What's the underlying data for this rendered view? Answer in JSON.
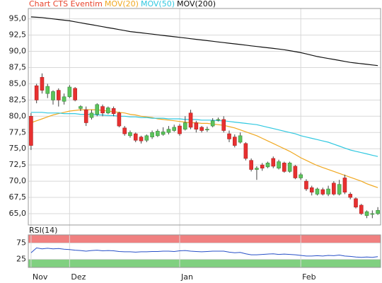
{
  "chart_data": {
    "type": "candlestick",
    "name": "Chart CTS Eventim",
    "name_color": "#e8442c",
    "up_color": "#5cc45c",
    "down_color": "#e83030",
    "categories": [
      "Nov",
      null,
      null,
      null,
      null,
      null,
      null,
      "Dez",
      null,
      null,
      null,
      null,
      null,
      null,
      null,
      null,
      null,
      null,
      null,
      null,
      null,
      null,
      null,
      null,
      null,
      null,
      null,
      "Jan",
      null,
      null,
      null,
      null,
      null,
      null,
      null,
      null,
      null,
      null,
      null,
      null,
      null,
      null,
      null,
      null,
      null,
      null,
      null,
      null,
      null,
      "Feb",
      null,
      null,
      null,
      null,
      null,
      null,
      null,
      null,
      null,
      null,
      null,
      null,
      null,
      null
    ],
    "open": [
      80,
      84.7,
      86,
      83.5,
      82.5,
      84,
      82.3,
      83,
      84.3,
      81.2,
      81,
      79.8,
      80.3,
      81.5,
      80.5,
      81.2,
      80.5,
      78.2,
      77,
      77.3,
      76.8,
      76.3,
      76.8,
      77,
      77.2,
      77.5,
      77.8,
      78.5,
      78,
      80.5,
      79,
      78.3,
      78,
      78.5,
      79.5,
      79.5,
      77.3,
      76.8,
      76,
      75.8,
      73.2,
      71.8,
      72.5,
      72.2,
      73.5,
      72,
      72.8,
      71.5,
      72.3,
      70.5,
      70,
      69,
      68,
      68.7,
      68,
      69.7,
      68,
      70.5,
      68,
      67.3,
      66.3,
      64.7,
      65,
      65
    ],
    "high": [
      80.5,
      85,
      86.6,
      85,
      84,
      84.3,
      83.5,
      84.8,
      84.5,
      81.7,
      81.5,
      81,
      82,
      81.8,
      81.5,
      81.5,
      80.7,
      78.5,
      77.8,
      77.5,
      77,
      77.2,
      77.8,
      78,
      78.3,
      78.5,
      78.7,
      78.8,
      80,
      81,
      79.3,
      78.5,
      78.4,
      79.7,
      79.8,
      80,
      77.8,
      77.2,
      77.5,
      76,
      73.5,
      72.3,
      72.8,
      73,
      73.8,
      73.3,
      73,
      73,
      72.5,
      71.3,
      70.3,
      69.3,
      69,
      69,
      69.3,
      70,
      70.2,
      71,
      68.3,
      67.5,
      66.5,
      65.5,
      65.5,
      66
    ],
    "low": [
      74.8,
      82,
      83.5,
      82.8,
      81.8,
      81.5,
      81.8,
      82.8,
      82.3,
      80.8,
      78.5,
      79.5,
      80,
      80,
      80.3,
      80,
      78.3,
      77,
      76.7,
      76,
      75.8,
      76,
      76.5,
      76.8,
      77,
      77.2,
      77.6,
      77,
      77.8,
      78,
      77.5,
      77.5,
      77.6,
      78.3,
      79.2,
      77.5,
      76,
      75.2,
      75.8,
      73.2,
      71.5,
      70.2,
      71.6,
      72,
      72,
      71.8,
      71.3,
      71.3,
      70.3,
      70.2,
      68.5,
      67.8,
      67.8,
      67.8,
      67.7,
      67.8,
      67.8,
      68,
      67.2,
      65.8,
      64.8,
      64.3,
      64.3,
      64.8
    ],
    "close": [
      75.5,
      82.5,
      84,
      84.6,
      83.8,
      82.5,
      83,
      84.5,
      82.5,
      81.5,
      79,
      80.5,
      81.8,
      80.5,
      81.3,
      80.4,
      78.5,
      77.3,
      77.5,
      76.3,
      76.2,
      77,
      77.5,
      77.7,
      77.6,
      78,
      78.3,
      77.3,
      79,
      78.3,
      78,
      77.8,
      78,
      79.3,
      79.5,
      77.8,
      76.5,
      75.5,
      77,
      73.5,
      71.8,
      72,
      72,
      72.8,
      72.3,
      73,
      71.5,
      72.8,
      70.5,
      71,
      68.8,
      68.3,
      68.8,
      68,
      68.8,
      68,
      69.5,
      68.3,
      67.5,
      66,
      65,
      65.3,
      65,
      65.5
    ],
    "series": [
      {
        "name": "MOV(20)",
        "color": "#f0a820",
        "values": [
          79,
          79.3,
          79.6,
          79.9,
          80.2,
          80.4,
          80.6,
          80.8,
          80.9,
          81.0,
          81.0,
          81.0,
          81.0,
          80.9,
          80.8,
          80.7,
          80.6,
          80.5,
          80.3,
          80.2,
          80.0,
          79.9,
          79.8,
          79.6,
          79.5,
          79.4,
          79.3,
          79.2,
          79.1,
          79.0,
          79.0,
          78.9,
          78.9,
          78.8,
          78.7,
          78.6,
          78.4,
          78.2,
          77.9,
          77.6,
          77.3,
          77.0,
          76.6,
          76.2,
          75.8,
          75.4,
          75.0,
          74.6,
          74.1,
          73.6,
          73.2,
          72.8,
          72.4,
          72.1,
          71.8,
          71.5,
          71.2,
          70.9,
          70.6,
          70.3,
          70.0,
          69.6,
          69.3,
          69.0
        ]
      },
      {
        "name": "MOV(50)",
        "color": "#30c8e0",
        "values": [
          80.6,
          80.6,
          80.6,
          80.5,
          80.5,
          80.5,
          80.4,
          80.4,
          80.4,
          80.3,
          80.3,
          80.3,
          80.2,
          80.2,
          80.1,
          80.1,
          80.0,
          80.0,
          79.9,
          79.9,
          79.8,
          79.8,
          79.7,
          79.7,
          79.7,
          79.6,
          79.6,
          79.6,
          79.5,
          79.5,
          79.5,
          79.4,
          79.4,
          79.4,
          79.3,
          79.3,
          79.2,
          79.1,
          79.0,
          78.9,
          78.8,
          78.7,
          78.5,
          78.3,
          78.1,
          77.9,
          77.7,
          77.5,
          77.3,
          77.0,
          76.8,
          76.6,
          76.4,
          76.2,
          76.0,
          75.7,
          75.4,
          75.1,
          74.8,
          74.6,
          74.4,
          74.2,
          74.0,
          73.8
        ]
      },
      {
        "name": "MOV(200)",
        "color": "#111111",
        "values": [
          95.3,
          95.25,
          95.2,
          95.1,
          95.0,
          94.9,
          94.8,
          94.7,
          94.55,
          94.4,
          94.25,
          94.1,
          93.95,
          93.8,
          93.65,
          93.5,
          93.35,
          93.2,
          93.05,
          92.95,
          92.85,
          92.75,
          92.65,
          92.55,
          92.45,
          92.35,
          92.25,
          92.15,
          92.05,
          91.95,
          91.85,
          91.75,
          91.65,
          91.55,
          91.45,
          91.35,
          91.25,
          91.15,
          91.05,
          90.95,
          90.85,
          90.75,
          90.65,
          90.55,
          90.45,
          90.35,
          90.25,
          90.1,
          89.95,
          89.8,
          89.6,
          89.4,
          89.2,
          89.05,
          88.9,
          88.75,
          88.6,
          88.45,
          88.3,
          88.2,
          88.1,
          88.0,
          87.9,
          87.8
        ]
      }
    ],
    "ylim": [
      63.25,
      96.6
    ],
    "yticks": [
      {
        "value": 65,
        "label": "65,0"
      },
      {
        "value": 67.5,
        "label": "67,5"
      },
      {
        "value": 70,
        "label": "70,0"
      },
      {
        "value": 72.5,
        "label": "72,5"
      },
      {
        "value": 75,
        "label": "75,0"
      },
      {
        "value": 77.5,
        "label": "77,5"
      },
      {
        "value": 80,
        "label": "80,0"
      },
      {
        "value": 82.5,
        "label": "82,5"
      },
      {
        "value": 85,
        "label": "85,0"
      },
      {
        "value": 87.5,
        "label": "87,5"
      },
      {
        "value": 90,
        "label": "90,0"
      },
      {
        "value": 92.5,
        "label": "92,5"
      },
      {
        "value": 95,
        "label": "95,0"
      }
    ],
    "grid": true,
    "indicator": {
      "type": "line",
      "title": "RSI(14)",
      "color": "#2850c8",
      "overbought_color": "#f08080",
      "oversold_color": "#80d080",
      "values": [
        45,
        60,
        57,
        59,
        57,
        58,
        56,
        55,
        53,
        52,
        50,
        52,
        53,
        51,
        52,
        51,
        49,
        48,
        48,
        47,
        48,
        48,
        49,
        49,
        50,
        50,
        49,
        51,
        52,
        50,
        49,
        48,
        49,
        50,
        50,
        50,
        47,
        45,
        46,
        42,
        39,
        39,
        40,
        41,
        42,
        40,
        41,
        40,
        39,
        37,
        35,
        35,
        36,
        35,
        37,
        36,
        38,
        35,
        34,
        32,
        31,
        32,
        31,
        33
      ],
      "ylim": [
        0,
        100
      ],
      "yticks": [
        25,
        75
      ]
    }
  }
}
